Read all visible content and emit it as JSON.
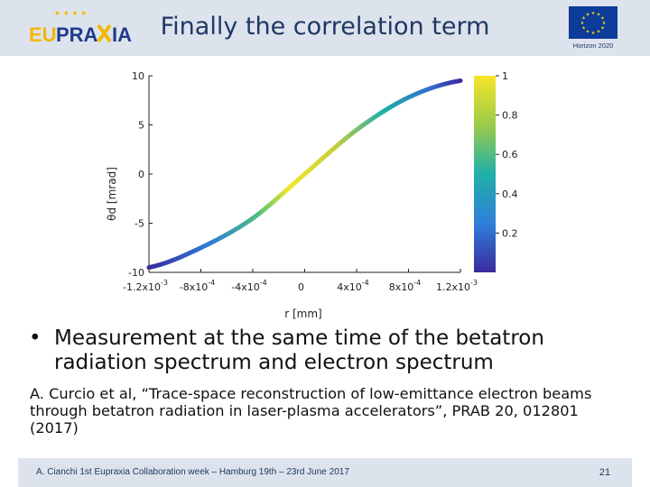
{
  "header": {
    "logo_text_a": "EU",
    "logo_text_b": "PRA",
    "logo_text_c": "IA",
    "title": "Finally the correlation term",
    "horizon_label": "Horizon 2020"
  },
  "figure": {
    "ylabel": "θd [mrad]",
    "xlabel": "r [mm]",
    "y_ticks": [
      "10",
      "5",
      "0",
      "-5",
      "-10"
    ],
    "x_ticks": [
      "-1.2x10",
      "-8x10",
      "-4x10",
      "0",
      "4x10",
      "8x10",
      "1.2x10"
    ],
    "x_tick_exps": [
      "-3",
      "-4",
      "-4",
      "",
      "-4",
      "-4",
      "-3"
    ],
    "colorbar_ticks": [
      "1",
      "0.8",
      "0.6",
      "0.4",
      "0.2"
    ]
  },
  "chart_data": {
    "type": "line",
    "title": "",
    "xlabel": "r [mm]",
    "ylabel": "θd [mrad]",
    "xlim": [
      -0.0012,
      0.0012
    ],
    "ylim": [
      -10,
      10
    ],
    "x": [
      -0.0012,
      -0.0008,
      -0.0004,
      0,
      0.0004,
      0.0008,
      0.0012
    ],
    "values": [
      -9.5,
      -7.5,
      -4.5,
      0,
      4.5,
      7.8,
      9.5
    ],
    "colorbar_range": [
      0,
      1
    ],
    "colors": {
      "low": "#3b2a9e",
      "mid": "#1fb0a8",
      "high": "#f6e52a"
    }
  },
  "content": {
    "bullet_char": "•",
    "bullet": "Measurement at the same time of the betatron radiation spectrum and electron spectrum",
    "reference": "A. Curcio et al, “Trace-space reconstruction of low-emittance electron beams through betatron radiation in laser-plasma accelerators”, PRAB 20, 012801 (2017)"
  },
  "footer": {
    "text": "A. Cianchi 1st Eupraxia Collaboration week – Hamburg 19th – 23rd June 2017",
    "page": "21"
  }
}
